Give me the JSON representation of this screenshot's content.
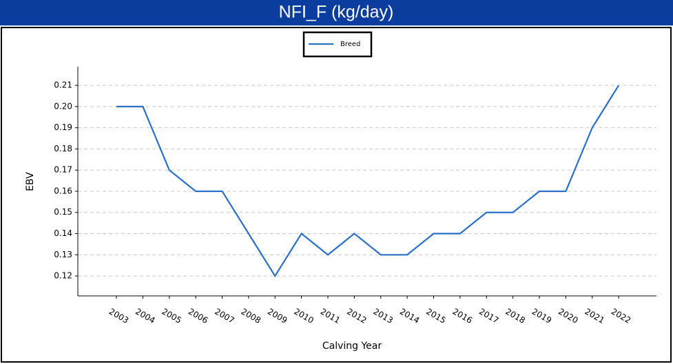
{
  "chart_data": {
    "type": "line",
    "title": "NFI_F (kg/day)",
    "x_label": "Calving Year",
    "y_label": "EBV",
    "x": [
      2003,
      2004,
      2005,
      2006,
      2007,
      2008,
      2009,
      2010,
      2011,
      2012,
      2013,
      2014,
      2015,
      2016,
      2017,
      2018,
      2019,
      2020,
      2021,
      2022
    ],
    "series": [
      {
        "name": "Breed",
        "color": "#2a6ec6",
        "values": [
          0.2,
          0.2,
          0.17,
          0.16,
          0.16,
          0.14,
          0.12,
          0.14,
          0.13,
          0.14,
          0.13,
          0.13,
          0.14,
          0.14,
          0.15,
          0.15,
          0.16,
          0.16,
          0.19,
          0.21
        ]
      }
    ],
    "xlim": [
      2001.54,
      2023.43
    ],
    "xticks": [
      2003,
      2004,
      2005,
      2006,
      2007,
      2008,
      2009,
      2010,
      2011,
      2012,
      2013,
      2014,
      2015,
      2016,
      2017,
      2018,
      2019,
      2020,
      2021,
      2022
    ],
    "ylim": [
      0.1106,
      0.2188
    ],
    "yticks": [
      0.12,
      0.13,
      0.14,
      0.15,
      0.16,
      0.17,
      0.18,
      0.19,
      {
        "value": 0.2,
        "label": "0.20"
      },
      0.21
    ],
    "grid": true,
    "legend": "upper center"
  }
}
